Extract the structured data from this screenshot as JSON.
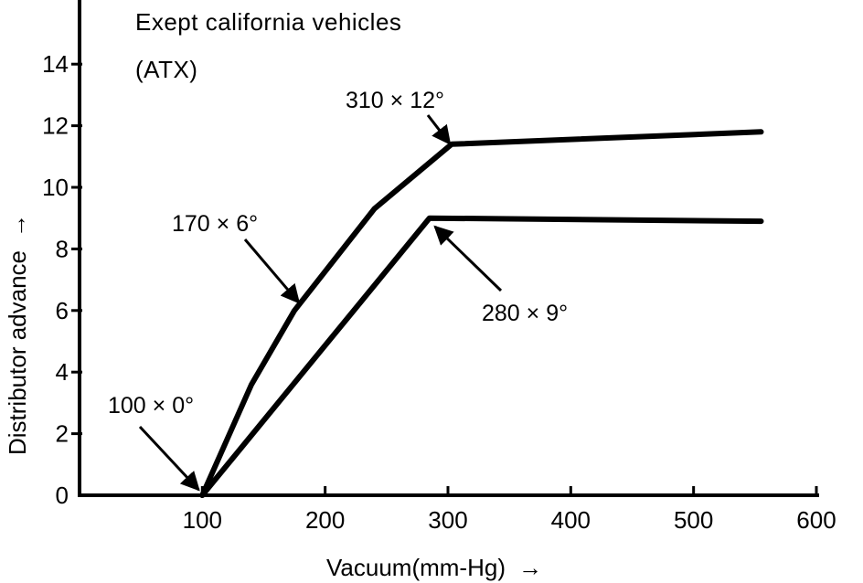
{
  "chart_data": {
    "type": "line",
    "title_lines": [
      "Exept california vehicles",
      "(ATX)"
    ],
    "xlabel": "Vacuum(mm-Hg)",
    "ylabel": "Distributor advance",
    "axis_arrow": "→",
    "xlim": [
      0,
      600
    ],
    "ylim": [
      0,
      16
    ],
    "x_ticks": [
      100,
      200,
      300,
      400,
      500,
      600
    ],
    "y_ticks": [
      0,
      2,
      4,
      6,
      8,
      10,
      12,
      14
    ],
    "grid": false,
    "series": [
      {
        "points": [
          [
            100,
            0
          ],
          [
            140,
            3.6
          ],
          [
            175,
            6
          ],
          [
            240,
            9.3
          ],
          [
            303,
            11.4
          ],
          [
            555,
            11.8
          ]
        ]
      },
      {
        "points": [
          [
            100,
            0
          ],
          [
            285,
            9
          ],
          [
            555,
            8.9
          ]
        ]
      }
    ],
    "annotations": [
      {
        "text": "310 × 12°",
        "x": 300,
        "y": 11.3
      },
      {
        "text": "170 × 6°",
        "x": 180,
        "y": 6.2
      },
      {
        "text": "280 × 9°",
        "x": 285,
        "y": 8.9
      },
      {
        "text": "100 × 0°",
        "x": 100,
        "y": 0
      }
    ]
  }
}
